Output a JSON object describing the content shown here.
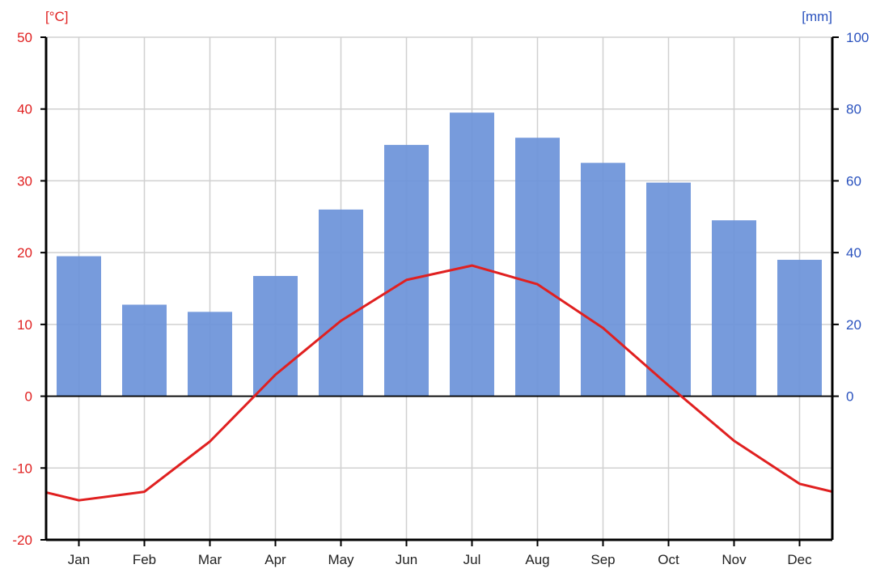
{
  "chart_data": {
    "type": "bar+line",
    "categories": [
      "Jan",
      "Feb",
      "Mar",
      "Apr",
      "May",
      "Jun",
      "Jul",
      "Aug",
      "Sep",
      "Oct",
      "Nov",
      "Dec"
    ],
    "series": [
      {
        "axis": "right",
        "type": "bar",
        "values": [
          39,
          25.5,
          23.5,
          33.5,
          52,
          70,
          79,
          72,
          65,
          59.5,
          49,
          38
        ]
      },
      {
        "axis": "left",
        "type": "line",
        "values": [
          -14.5,
          -13.3,
          -6.3,
          3.0,
          10.5,
          16.2,
          18.2,
          15.6,
          9.5,
          1.5,
          -6.2,
          -12.2
        ],
        "edge_values": [
          -13.4,
          -13.3
        ]
      }
    ],
    "left_axis": {
      "label": "[°C]",
      "ylim": [
        -20,
        50
      ],
      "ticks": [
        -20,
        -10,
        0,
        10,
        20,
        30,
        40,
        50
      ]
    },
    "right_axis": {
      "label": "[mm]",
      "ylim": [
        0,
        100
      ],
      "ticks": [
        0,
        20,
        40,
        60,
        80,
        100
      ]
    },
    "grid": true,
    "colors": {
      "bar": "#6b93d9",
      "line": "#e02020",
      "left_axis": "#e02020",
      "right_axis": "#2a52be",
      "grid": "#d0d0d0"
    }
  }
}
